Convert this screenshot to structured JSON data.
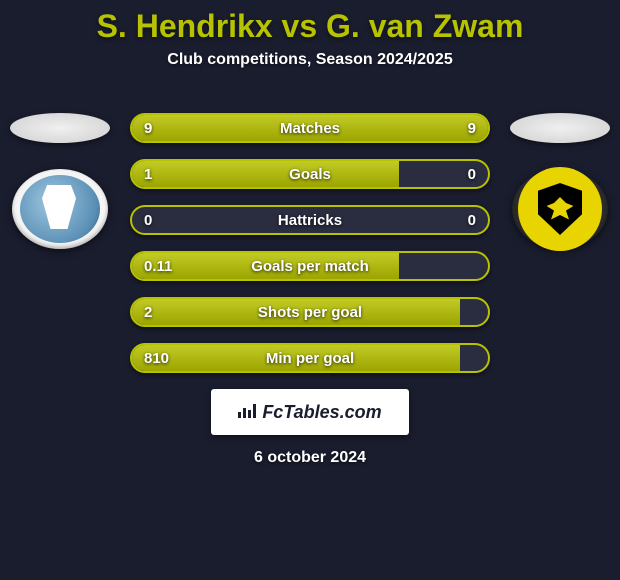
{
  "title": "S. Hendrikx vs G. van Zwam",
  "subtitle": "Club competitions, Season 2024/2025",
  "date": "6 october 2024",
  "badge": "FcTables.com",
  "colors": {
    "title": "#b7c200",
    "background": "#1a1d2e",
    "bar_track": "#2a2d40",
    "left_fill": "#b7c200",
    "right_fill": "#b7c200",
    "border_theme1": "#b7c200",
    "text": "#ffffff"
  },
  "stats": [
    {
      "label": "Matches",
      "left_val": "9",
      "right_val": "9",
      "left_pct": 50,
      "right_pct": 50,
      "border": "#b7c200",
      "lfill": "#b7c200",
      "rfill": "#b7c200"
    },
    {
      "label": "Goals",
      "left_val": "1",
      "right_val": "0",
      "left_pct": 75,
      "right_pct": 0,
      "border": "#b7c200",
      "lfill": "#b7c200",
      "rfill": "#b7c200"
    },
    {
      "label": "Hattricks",
      "left_val": "0",
      "right_val": "0",
      "left_pct": 0,
      "right_pct": 0,
      "border": "#b7c200",
      "lfill": "#b7c200",
      "rfill": "#b7c200"
    },
    {
      "label": "Goals per match",
      "left_val": "0.11",
      "right_val": "",
      "left_pct": 75,
      "right_pct": 0,
      "border": "#b7c200",
      "lfill": "#b7c200",
      "rfill": "#b7c200"
    },
    {
      "label": "Shots per goal",
      "left_val": "2",
      "right_val": "",
      "left_pct": 92,
      "right_pct": 0,
      "border": "#b7c200",
      "lfill": "#b7c200",
      "rfill": "#b7c200"
    },
    {
      "label": "Min per goal",
      "left_val": "810",
      "right_val": "",
      "left_pct": 92,
      "right_pct": 0,
      "border": "#b7c200",
      "lfill": "#b7c200",
      "rfill": "#b7c200"
    }
  ],
  "left_team_crest_bg": "#f5f5f5",
  "right_team_crest_bg": "#2b2b2b"
}
